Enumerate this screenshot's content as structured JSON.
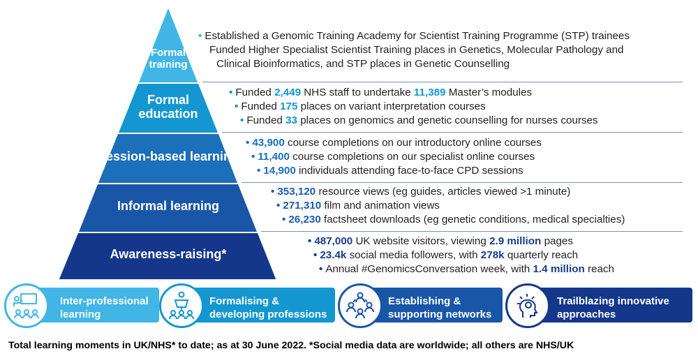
{
  "colors": {
    "tier1": "#41b6e6",
    "tier2": "#1497d0",
    "tier3": "#1c6fb9",
    "tier4": "#1a56a8",
    "tier5": "#14378b",
    "dot1": "#41b6e6",
    "dot2": "#1497d0",
    "dot3": "#1a6fbe",
    "dot4": "#1a5cb0",
    "dot5": "#163c8e"
  },
  "tiers": [
    {
      "label": [
        "Formal",
        "training"
      ],
      "lines": [
        [
          {
            "t": "Established a Genomic Training Academy for Scientist Training Programme (STP) trainees"
          }
        ],
        [
          {
            "t": "Funded Higher Specialist Scientist Training places in Genetics, Molecular Pathology and"
          }
        ],
        [
          {
            "t": "Clinical Bioinformatics, and STP places in Genetic Counselling"
          }
        ]
      ]
    },
    {
      "label": [
        "Formal",
        "education"
      ],
      "lines": [
        [
          {
            "t": "Funded "
          },
          {
            "t": "2,449",
            "b": true
          },
          {
            "t": " NHS staff to undertake "
          },
          {
            "t": "11,389",
            "b": true
          },
          {
            "t": " Master’s modules"
          }
        ],
        [
          {
            "t": "Funded "
          },
          {
            "t": "175",
            "b": true
          },
          {
            "t": " places on variant interpretation courses"
          }
        ],
        [
          {
            "t": "Funded "
          },
          {
            "t": "33",
            "b": true
          },
          {
            "t": " places on genomics and genetic counselling for nurses courses"
          }
        ]
      ]
    },
    {
      "label": [
        "Session-based learning"
      ],
      "lines": [
        [
          {
            "t": "43,900",
            "b": true
          },
          {
            "t": " course completions on our introductory online courses"
          }
        ],
        [
          {
            "t": "11,400",
            "b": true
          },
          {
            "t": " course completions on our specialist online courses"
          }
        ],
        [
          {
            "t": "14,900",
            "b": true
          },
          {
            "t": " individuals attending face-to-face CPD sessions"
          }
        ]
      ]
    },
    {
      "label": [
        "Informal learning"
      ],
      "lines": [
        [
          {
            "t": "353,120",
            "b": true
          },
          {
            "t": " resource views (eg guides, articles viewed >1 minute)"
          }
        ],
        [
          {
            "t": "271,310",
            "b": true
          },
          {
            "t": " film and animation views"
          }
        ],
        [
          {
            "t": "26,230",
            "b": true
          },
          {
            "t": " factsheet downloads (eg genetic conditions, medical specialties)"
          }
        ]
      ]
    },
    {
      "label": [
        "Awareness-raising*"
      ],
      "lines": [
        [
          {
            "t": "487,000",
            "b": true
          },
          {
            "t": " UK website visitors, viewing "
          },
          {
            "t": "2.9 million",
            "b": true
          },
          {
            "t": " pages"
          }
        ],
        [
          {
            "t": "23.4k",
            "b": true
          },
          {
            "t": " social media followers, with "
          },
          {
            "t": "278k",
            "b": true
          },
          {
            "t": " quarterly reach"
          }
        ],
        [
          {
            "t": "Annual #GenomicsConversation week, with "
          },
          {
            "t": "1.4 million",
            "b": true
          },
          {
            "t": " reach"
          }
        ]
      ]
    }
  ],
  "themes": [
    {
      "label": [
        "Inter-professional",
        "learning"
      ],
      "icon": "presenter-group-icon",
      "color": "#41b6e6"
    },
    {
      "label": [
        "Formalising &",
        "developing professions"
      ],
      "icon": "lectern-audience-icon",
      "color": "#1497d0"
    },
    {
      "label": [
        "Establishing &",
        "supporting networks"
      ],
      "icon": "network-people-icon",
      "color": "#1a56a8"
    },
    {
      "label": [
        "Trailblazing innovative",
        "approaches"
      ],
      "icon": "lightbulb-head-icon",
      "color": "#14378b"
    }
  ],
  "footer": "Total learning moments in UK/NHS* to date; as at 30 June 2022. *Social media data are worldwide; all others are NHS/UK"
}
